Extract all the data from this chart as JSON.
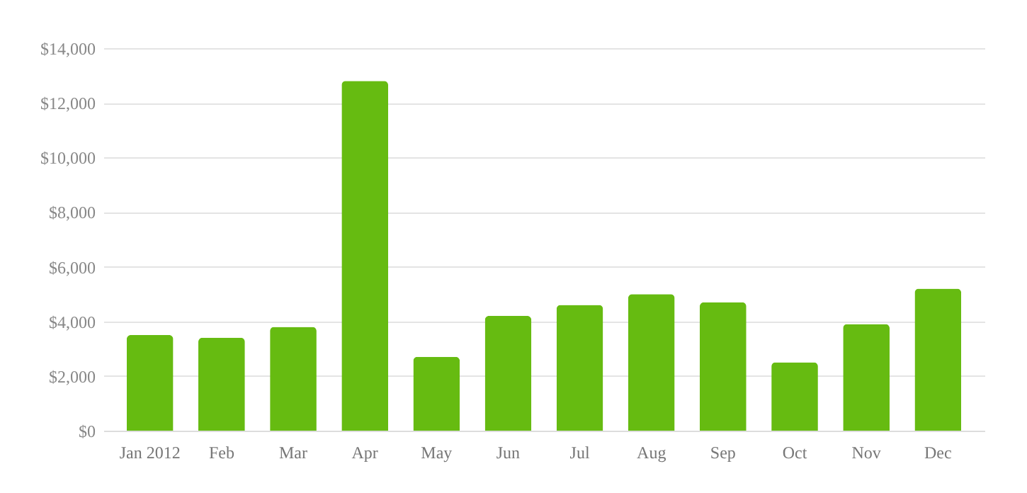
{
  "chart_data": {
    "type": "bar",
    "categories": [
      "Jan 2012",
      "Feb",
      "Mar",
      "Apr",
      "May",
      "Jun",
      "Jul",
      "Aug",
      "Sep",
      "Oct",
      "Nov",
      "Dec"
    ],
    "values": [
      3500,
      3400,
      3800,
      12800,
      2700,
      4200,
      4600,
      5000,
      4700,
      2500,
      3900,
      5200
    ],
    "color": "#66bb11",
    "ylim": [
      0,
      14000
    ],
    "yticks": [
      {
        "value": 0,
        "label": "$0"
      },
      {
        "value": 2000,
        "label": "$2,000"
      },
      {
        "value": 4000,
        "label": "$4,000"
      },
      {
        "value": 6000,
        "label": "$6,000"
      },
      {
        "value": 8000,
        "label": "$8,000"
      },
      {
        "value": 10000,
        "label": "$10,000"
      },
      {
        "value": 12000,
        "label": "$12,000"
      },
      {
        "value": 14000,
        "label": "$14,000"
      }
    ],
    "grid": "y"
  }
}
